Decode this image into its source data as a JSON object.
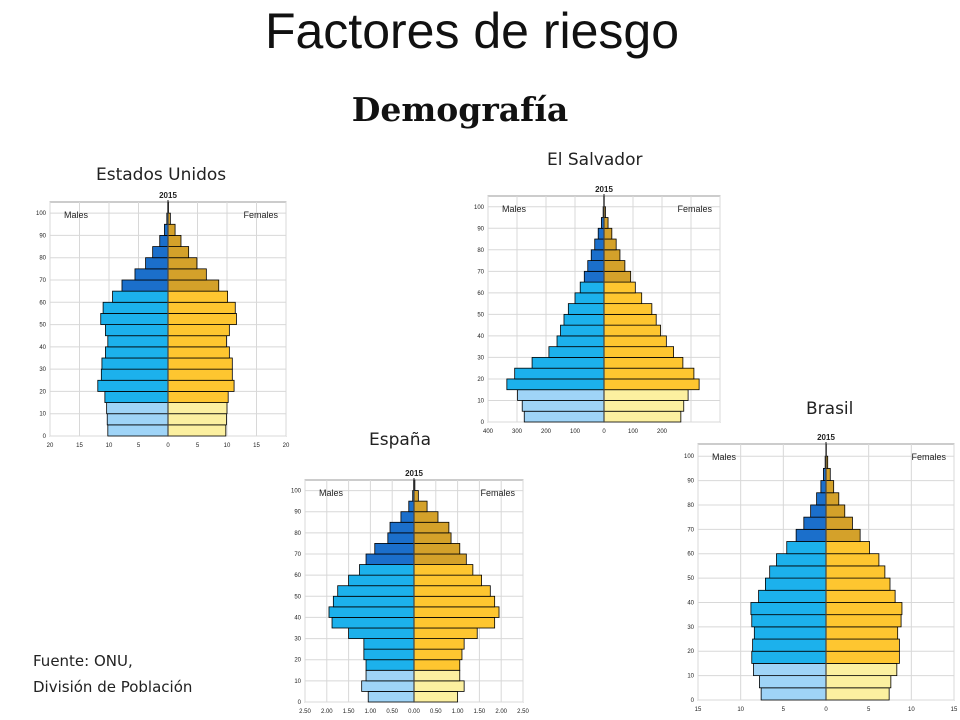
{
  "slide": {
    "title": "Factores de riesgo",
    "subtitle": "Demografía",
    "source_line1": "Fuente: ONU,",
    "source_line2": "División de Población"
  },
  "colors": {
    "male_young": "#9fd4f7",
    "male_adult": "#1cb1ec",
    "male_old": "#1b6fcb",
    "female_young": "#fcf0a0",
    "female_adult": "#fec630",
    "female_old": "#d4a12a",
    "outline": "#000000",
    "grid": "#d8d8d8",
    "axis": "#444444"
  },
  "chart_data": [
    {
      "type": "bar",
      "id": "usa",
      "country": "Estados Unidos",
      "year": "2015",
      "males_label": "Males",
      "females_label": "Females",
      "age_ticks": [
        "0",
        "10",
        "20",
        "30",
        "40",
        "50",
        "60",
        "70",
        "80",
        "90",
        "100"
      ],
      "x_ticks": [
        "20",
        "15",
        "10",
        "5",
        "0",
        "5",
        "10",
        "15",
        "20"
      ],
      "x_max": 20,
      "age_groups": [
        "0-4",
        "5-9",
        "10-14",
        "15-19",
        "20-24",
        "25-29",
        "30-34",
        "35-39",
        "40-44",
        "45-49",
        "50-54",
        "55-59",
        "60-64",
        "65-69",
        "70-74",
        "75-79",
        "80-84",
        "85-89",
        "90-94",
        "95-99",
        "100+"
      ],
      "series": [
        {
          "name": "Males",
          "values": [
            10.2,
            10.3,
            10.4,
            10.7,
            11.9,
            11.3,
            11.2,
            10.6,
            10.2,
            10.6,
            11.4,
            11.0,
            9.4,
            7.8,
            5.6,
            3.8,
            2.6,
            1.4,
            0.6,
            0.2,
            0.05
          ]
        },
        {
          "name": "Females",
          "values": [
            9.8,
            9.9,
            10.0,
            10.2,
            11.2,
            10.9,
            10.9,
            10.4,
            9.9,
            10.4,
            11.6,
            11.4,
            10.1,
            8.6,
            6.5,
            4.9,
            3.5,
            2.2,
            1.2,
            0.4,
            0.1
          ]
        }
      ]
    },
    {
      "type": "bar",
      "id": "el-salvador",
      "country": "El Salvador",
      "year": "2015",
      "males_label": "Males",
      "females_label": "Females",
      "age_ticks": [
        "0",
        "10",
        "20",
        "30",
        "40",
        "50",
        "60",
        "70",
        "80",
        "90",
        "100"
      ],
      "x_ticks": [
        "400",
        "300",
        "200",
        "100",
        "0",
        "100",
        "200",
        "300",
        "400"
      ],
      "x_max": 400,
      "age_groups": [
        "0-4",
        "5-9",
        "10-14",
        "15-19",
        "20-24",
        "25-29",
        "30-34",
        "35-39",
        "40-44",
        "45-49",
        "50-54",
        "55-59",
        "60-64",
        "65-69",
        "70-74",
        "75-79",
        "80-84",
        "85-89",
        "90-94",
        "95-99",
        "100+"
      ],
      "series": [
        {
          "name": "Males",
          "values": [
            275,
            282,
            298,
            335,
            308,
            248,
            190,
            162,
            150,
            138,
            123,
            100,
            82,
            68,
            56,
            44,
            32,
            20,
            9,
            3,
            1
          ]
        },
        {
          "name": "Females",
          "values": [
            265,
            275,
            290,
            328,
            310,
            272,
            240,
            215,
            195,
            180,
            165,
            130,
            108,
            92,
            72,
            55,
            42,
            27,
            14,
            5,
            1
          ]
        }
      ]
    },
    {
      "type": "bar",
      "id": "espana",
      "country": "España",
      "year": "2015",
      "males_label": "Males",
      "females_label": "Females",
      "age_ticks": [
        "0",
        "10",
        "20",
        "30",
        "40",
        "50",
        "60",
        "70",
        "80",
        "90",
        "100"
      ],
      "x_ticks": [
        "2.50",
        "2.00",
        "1.50",
        "1.00",
        "0.50",
        "0.00",
        "0.50",
        "1.00",
        "1.50",
        "2.00",
        "2.50"
      ],
      "x_max": 2.5,
      "age_groups": [
        "0-4",
        "5-9",
        "10-14",
        "15-19",
        "20-24",
        "25-29",
        "30-34",
        "35-39",
        "40-44",
        "45-49",
        "50-54",
        "55-59",
        "60-64",
        "65-69",
        "70-74",
        "75-79",
        "80-84",
        "85-89",
        "90-94",
        "95-99",
        "100+"
      ],
      "series": [
        {
          "name": "Males",
          "values": [
            1.05,
            1.2,
            1.1,
            1.1,
            1.15,
            1.15,
            1.5,
            1.88,
            1.95,
            1.85,
            1.75,
            1.5,
            1.25,
            1.1,
            0.9,
            0.6,
            0.55,
            0.3,
            0.12,
            0.03,
            0.01
          ]
        },
        {
          "name": "Females",
          "values": [
            1.0,
            1.15,
            1.05,
            1.05,
            1.1,
            1.15,
            1.45,
            1.85,
            1.95,
            1.85,
            1.75,
            1.55,
            1.35,
            1.2,
            1.05,
            0.85,
            0.8,
            0.55,
            0.3,
            0.1,
            0.02
          ]
        }
      ]
    },
    {
      "type": "bar",
      "id": "brasil",
      "country": "Brasil",
      "year": "2015",
      "males_label": "Males",
      "females_label": "Females",
      "age_ticks": [
        "0",
        "10",
        "20",
        "30",
        "40",
        "50",
        "60",
        "70",
        "80",
        "90",
        "100"
      ],
      "x_ticks": [
        "15",
        "10",
        "5",
        "0",
        "5",
        "10",
        "15"
      ],
      "x_max": 15,
      "age_groups": [
        "0-4",
        "5-9",
        "10-14",
        "15-19",
        "20-24",
        "25-29",
        "30-34",
        "35-39",
        "40-44",
        "45-49",
        "50-54",
        "55-59",
        "60-64",
        "65-69",
        "70-74",
        "75-79",
        "80-84",
        "85-89",
        "90-94",
        "95-99",
        "100+"
      ],
      "series": [
        {
          "name": "Males",
          "values": [
            7.6,
            7.8,
            8.5,
            8.7,
            8.6,
            8.4,
            8.7,
            8.8,
            7.9,
            7.1,
            6.6,
            5.8,
            4.6,
            3.5,
            2.6,
            1.8,
            1.1,
            0.6,
            0.3,
            0.1,
            0.02
          ]
        },
        {
          "name": "Females",
          "values": [
            7.4,
            7.6,
            8.3,
            8.6,
            8.6,
            8.4,
            8.8,
            8.9,
            8.1,
            7.5,
            6.9,
            6.2,
            5.1,
            4.0,
            3.1,
            2.2,
            1.5,
            0.9,
            0.5,
            0.2,
            0.05
          ]
        }
      ]
    }
  ]
}
